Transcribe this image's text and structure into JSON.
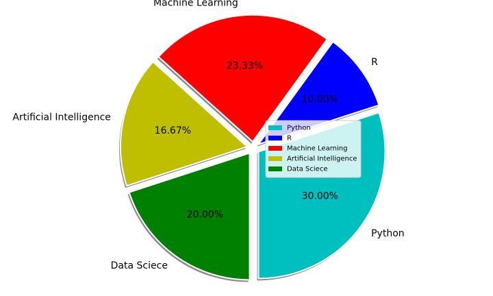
{
  "chart_data": {
    "type": "pie",
    "title": "",
    "categories": [
      "Python",
      "R",
      "Machine Learning",
      "Artificial Intelligence",
      "Data Sciece"
    ],
    "values": [
      30.0,
      10.0,
      23.33,
      16.67,
      20.0
    ],
    "value_labels": [
      "30.00%",
      "10.00%",
      "23.33%",
      "16.67%",
      "20.00%"
    ],
    "colors": [
      "#00bfbf",
      "#0000ff",
      "#ff0000",
      "#bfbf00",
      "#008000"
    ],
    "start_angle_deg": -90,
    "direction": "counterclockwise",
    "exploded": true,
    "shadow": true,
    "legend": {
      "placement": "center-right",
      "entries": [
        "Python",
        "R",
        "Machine Learning",
        "Artificial Intelligence",
        "Data Sciece"
      ]
    }
  }
}
